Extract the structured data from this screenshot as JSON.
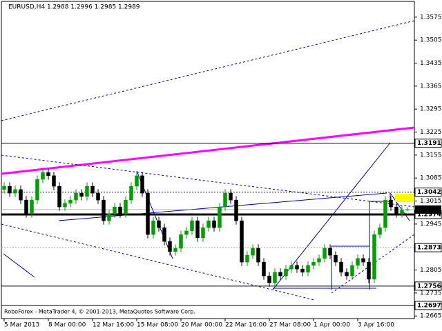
{
  "chart_data": {
    "type": "candlestick",
    "title": "EURUSD,H4  1.2988 1.2996 1.2985 1.2989",
    "footer": "RoboForex - MetaTrader 4, © 2001-2013, MetaQuotes Software Corp.",
    "up_color": "#00a000",
    "down_color": "#000000",
    "ylim": [
      1.2657,
      1.3623
    ],
    "yticks": [
      1.3575,
      1.3505,
      1.3435,
      1.3365,
      1.3295,
      1.3225,
      1.3155,
      1.3085,
      1.3015,
      1.2945,
      1.2805,
      1.2735,
      1.2665
    ],
    "levels": [
      1.3191,
      1.3042,
      1.2974,
      1.2873,
      1.2756,
      1.2697
    ],
    "current": 1.2989,
    "categories": [
      "5 Mar 2013",
      null,
      null,
      null,
      null,
      null,
      null,
      null,
      "8 Mar 00:00",
      null,
      null,
      null,
      null,
      null,
      null,
      null,
      "12 Mar 16:00",
      null,
      null,
      null,
      null,
      null,
      null,
      null,
      "15 Mar 08:00",
      null,
      null,
      null,
      null,
      null,
      null,
      null,
      "20 Mar 00:00",
      null,
      null,
      null,
      null,
      null,
      null,
      null,
      "22 Mar 16:00",
      null,
      null,
      null,
      null,
      null,
      null,
      null,
      "27 Mar 08:00",
      null,
      null,
      null,
      null,
      null,
      null,
      null,
      "1 Apr 00:00",
      null,
      null,
      null,
      null,
      null,
      null,
      null,
      "3 Apr 16:00",
      null,
      null,
      null,
      null,
      null,
      null,
      null,
      null,
      null
    ],
    "candles": [
      [
        1.305,
        1.3072,
        1.3038,
        1.306
      ],
      [
        1.306,
        1.3072,
        1.3027,
        1.3039
      ],
      [
        1.3039,
        1.3062,
        1.3027,
        1.305
      ],
      [
        1.305,
        1.3062,
        1.3006,
        1.3018
      ],
      [
        1.3018,
        1.303,
        1.2964,
        1.2976
      ],
      [
        1.2976,
        1.303,
        1.2964,
        1.3018
      ],
      [
        1.3018,
        1.3093,
        1.3006,
        1.3081
      ],
      [
        1.3081,
        1.3114,
        1.3069,
        1.3102
      ],
      [
        1.3102,
        1.3114,
        1.308,
        1.3092
      ],
      [
        1.3092,
        1.3104,
        1.3048,
        1.306
      ],
      [
        1.306,
        1.3072,
        1.2985,
        1.2997
      ],
      [
        1.2997,
        1.302,
        1.2985,
        1.3008
      ],
      [
        1.3008,
        1.303,
        1.2996,
        1.3018
      ],
      [
        1.3018,
        1.3051,
        1.3006,
        1.3039
      ],
      [
        1.3039,
        1.3051,
        1.3017,
        1.3029
      ],
      [
        1.3029,
        1.3072,
        1.3017,
        1.306
      ],
      [
        1.306,
        1.3072,
        1.3027,
        1.3039
      ],
      [
        1.3039,
        1.3051,
        1.3006,
        1.3018
      ],
      [
        1.3018,
        1.303,
        1.2943,
        1.2955
      ],
      [
        1.2955,
        1.2988,
        1.2943,
        1.2976
      ],
      [
        1.2976,
        1.3009,
        1.2964,
        1.2997
      ],
      [
        1.2997,
        1.3009,
        1.2964,
        1.2976
      ],
      [
        1.2976,
        1.303,
        1.2964,
        1.3018
      ],
      [
        1.3018,
        1.3072,
        1.3006,
        1.306
      ],
      [
        1.306,
        1.3104,
        1.3048,
        1.3092
      ],
      [
        1.3092,
        1.3104,
        1.3027,
        1.3039
      ],
      [
        1.3039,
        1.3051,
        1.2901,
        1.2913
      ],
      [
        1.2913,
        1.2967,
        1.2901,
        1.2955
      ],
      [
        1.2955,
        1.2967,
        1.2922,
        1.2934
      ],
      [
        1.2934,
        1.2946,
        1.288,
        1.2892
      ],
      [
        1.2892,
        1.2904,
        1.2849,
        1.2861
      ],
      [
        1.2861,
        1.2883,
        1.2849,
        1.2871
      ],
      [
        1.2871,
        1.2925,
        1.2859,
        1.2913
      ],
      [
        1.2913,
        1.2936,
        1.2901,
        1.2924
      ],
      [
        1.2924,
        1.2967,
        1.2912,
        1.2955
      ],
      [
        1.2955,
        1.2967,
        1.2891,
        1.2903
      ],
      [
        1.2903,
        1.2946,
        1.2891,
        1.2934
      ],
      [
        1.2934,
        1.2967,
        1.2922,
        1.2955
      ],
      [
        1.2955,
        1.2967,
        1.2922,
        1.2934
      ],
      [
        1.2934,
        1.3009,
        1.2922,
        1.2997
      ],
      [
        1.2997,
        1.3051,
        1.2985,
        1.3039
      ],
      [
        1.3039,
        1.3051,
        1.3006,
        1.3018
      ],
      [
        1.3018,
        1.303,
        1.2943,
        1.2955
      ],
      [
        1.2955,
        1.2967,
        1.2817,
        1.2829
      ],
      [
        1.2829,
        1.2862,
        1.2817,
        1.285
      ],
      [
        1.285,
        1.2883,
        1.2838,
        1.2871
      ],
      [
        1.2871,
        1.2883,
        1.2817,
        1.2829
      ],
      [
        1.2829,
        1.2841,
        1.2775,
        1.2787
      ],
      [
        1.2787,
        1.2799,
        1.2754,
        1.2766
      ],
      [
        1.2766,
        1.281,
        1.2754,
        1.2798
      ],
      [
        1.2798,
        1.281,
        1.2775,
        1.2787
      ],
      [
        1.2787,
        1.282,
        1.2775,
        1.2808
      ],
      [
        1.2808,
        1.2831,
        1.2796,
        1.2819
      ],
      [
        1.2819,
        1.2831,
        1.2796,
        1.2808
      ],
      [
        1.2808,
        1.282,
        1.2786,
        1.2798
      ],
      [
        1.2798,
        1.2831,
        1.2786,
        1.2819
      ],
      [
        1.2819,
        1.2841,
        1.2807,
        1.2829
      ],
      [
        1.2829,
        1.2852,
        1.2817,
        1.284
      ],
      [
        1.284,
        1.2883,
        1.2828,
        1.2871
      ],
      [
        1.2871,
        1.2883,
        1.2838,
        1.285
      ],
      [
        1.285,
        1.2862,
        1.2817,
        1.2829
      ],
      [
        1.2829,
        1.2841,
        1.2786,
        1.2798
      ],
      [
        1.2798,
        1.281,
        1.2775,
        1.2787
      ],
      [
        1.2787,
        1.2831,
        1.2775,
        1.2819
      ],
      [
        1.2819,
        1.2852,
        1.2807,
        1.284
      ],
      [
        1.284,
        1.2852,
        1.2817,
        1.2829
      ],
      [
        1.2829,
        1.2841,
        1.2765,
        1.2777
      ],
      [
        1.2777,
        1.2925,
        1.2765,
        1.2913
      ],
      [
        1.2913,
        1.2946,
        1.2901,
        1.2934
      ],
      [
        1.2934,
        1.303,
        1.2922,
        1.3018
      ],
      [
        1.3018,
        1.303,
        1.2985,
        1.2997
      ],
      [
        1.2997,
        1.3009,
        1.2964,
        1.2976
      ],
      [
        1.2976,
        1.2999,
        1.2964,
        1.2987
      ],
      [
        1.2988,
        1.2996,
        1.2985,
        1.2989
      ]
    ]
  }
}
